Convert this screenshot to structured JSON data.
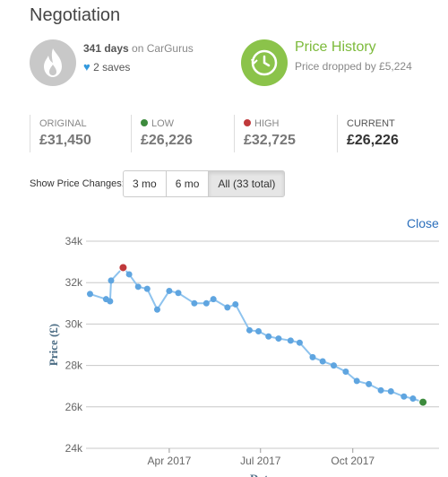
{
  "page": {
    "title": "Negotiation"
  },
  "days": {
    "count": "341 days",
    "suffix": " on CarGurus",
    "saves": "2 saves"
  },
  "price_history": {
    "title": "Price History",
    "subtitle": "Price dropped by £5,224"
  },
  "stats": {
    "original": {
      "label": "ORIGINAL",
      "value": "£31,450"
    },
    "low": {
      "label": "LOW",
      "value": "£26,226",
      "color": "#3d8b3d"
    },
    "high": {
      "label": "HIGH",
      "value": "£32,725",
      "color": "#c0393b"
    },
    "current": {
      "label": "CURRENT",
      "value": "£26,226"
    }
  },
  "price_changes": {
    "label": "Show Price Changes:",
    "options": [
      "3 mo",
      "6 mo",
      "All (33 total)"
    ],
    "selected": "All (33 total)"
  },
  "close_label": "Close",
  "colors": {
    "line": "#8ec3ee",
    "point": "#5fa5e0",
    "low": "#3d8b3d",
    "high": "#c0393b",
    "accent_green": "#8bc34a"
  },
  "chart_data": {
    "type": "line",
    "ylabel": "Price (£)",
    "xlabel": "Date",
    "ylim": [
      24000,
      34000
    ],
    "yticks": [
      "24k",
      "26k",
      "28k",
      "30k",
      "32k",
      "34k"
    ],
    "ytick_values": [
      24000,
      26000,
      28000,
      30000,
      32000,
      34000
    ],
    "xticks": [
      "Apr 2017",
      "Jul 2017",
      "Oct 2017"
    ],
    "xtick_dates": [
      "2017-04-01",
      "2017-07-01",
      "2017-10-01"
    ],
    "xlim": [
      "2017-01-08",
      "2017-12-26"
    ],
    "grid": true,
    "series": [
      {
        "values": [
          [
            "2017-01-12",
            31450
          ],
          [
            "2017-01-28",
            31200
          ],
          [
            "2017-02-01",
            31100
          ],
          [
            "2017-02-02",
            32100
          ],
          [
            "2017-02-14",
            32725
          ],
          [
            "2017-02-20",
            32400
          ],
          [
            "2017-03-01",
            31800
          ],
          [
            "2017-03-10",
            31700
          ],
          [
            "2017-03-20",
            30700
          ],
          [
            "2017-04-01",
            31600
          ],
          [
            "2017-04-10",
            31500
          ],
          [
            "2017-04-26",
            31000
          ],
          [
            "2017-05-08",
            31000
          ],
          [
            "2017-05-15",
            31200
          ],
          [
            "2017-05-29",
            30800
          ],
          [
            "2017-06-06",
            30950
          ],
          [
            "2017-06-20",
            29700
          ],
          [
            "2017-06-29",
            29650
          ],
          [
            "2017-07-09",
            29400
          ],
          [
            "2017-07-19",
            29300
          ],
          [
            "2017-07-31",
            29200
          ],
          [
            "2017-08-09",
            29100
          ],
          [
            "2017-08-22",
            28400
          ],
          [
            "2017-09-01",
            28200
          ],
          [
            "2017-09-12",
            28000
          ],
          [
            "2017-09-24",
            27700
          ],
          [
            "2017-10-05",
            27250
          ],
          [
            "2017-10-17",
            27100
          ],
          [
            "2017-10-29",
            26800
          ],
          [
            "2017-11-08",
            26750
          ],
          [
            "2017-11-21",
            26500
          ],
          [
            "2017-11-30",
            26400
          ],
          [
            "2017-12-10",
            26226
          ]
        ]
      }
    ],
    "high_index": 4,
    "low_index": 32
  }
}
